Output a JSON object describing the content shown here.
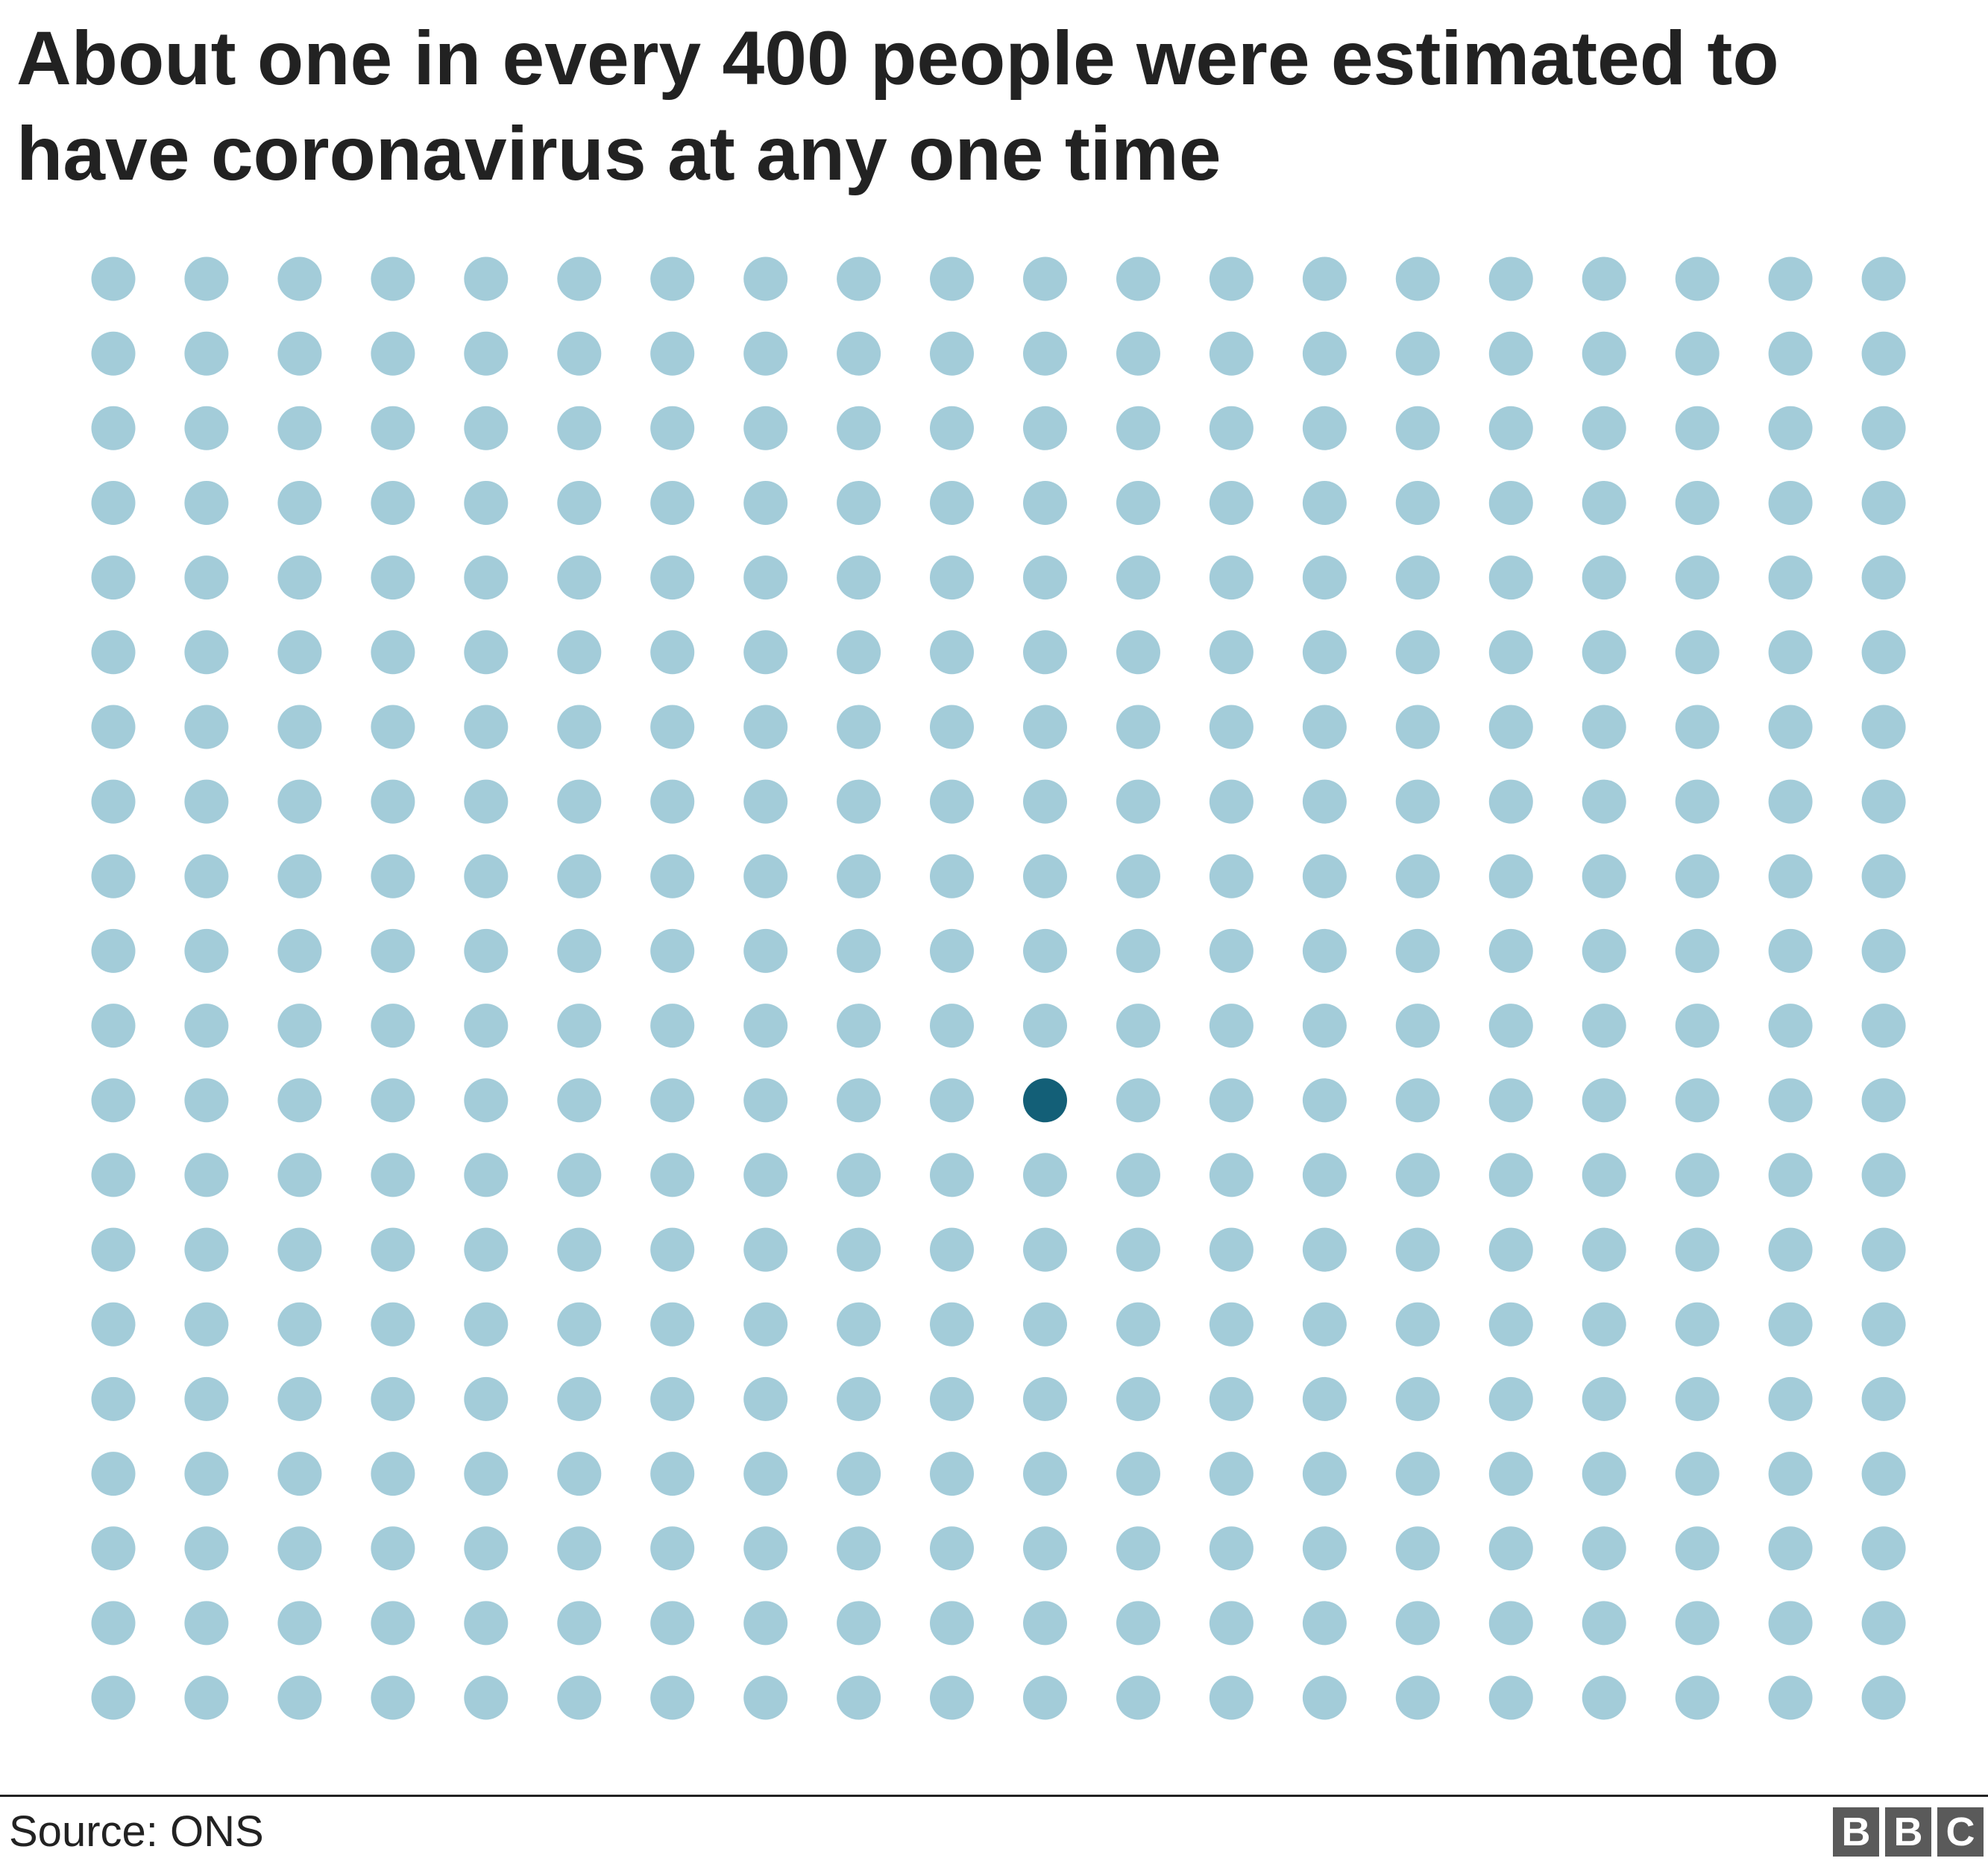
{
  "title": "About one in every 400 people were estimated to have coronavirus at any one time",
  "source": "Source: ONS",
  "logo": [
    "B",
    "B",
    "C"
  ],
  "chart_data": {
    "type": "unit-dot-grid",
    "rows": 20,
    "columns": 20,
    "total_units": 400,
    "highlighted_units": 1,
    "highlighted_position": {
      "row": 12,
      "column": 11
    },
    "colors": {
      "base": "#a3ccd9",
      "highlight": "#135f77"
    }
  }
}
